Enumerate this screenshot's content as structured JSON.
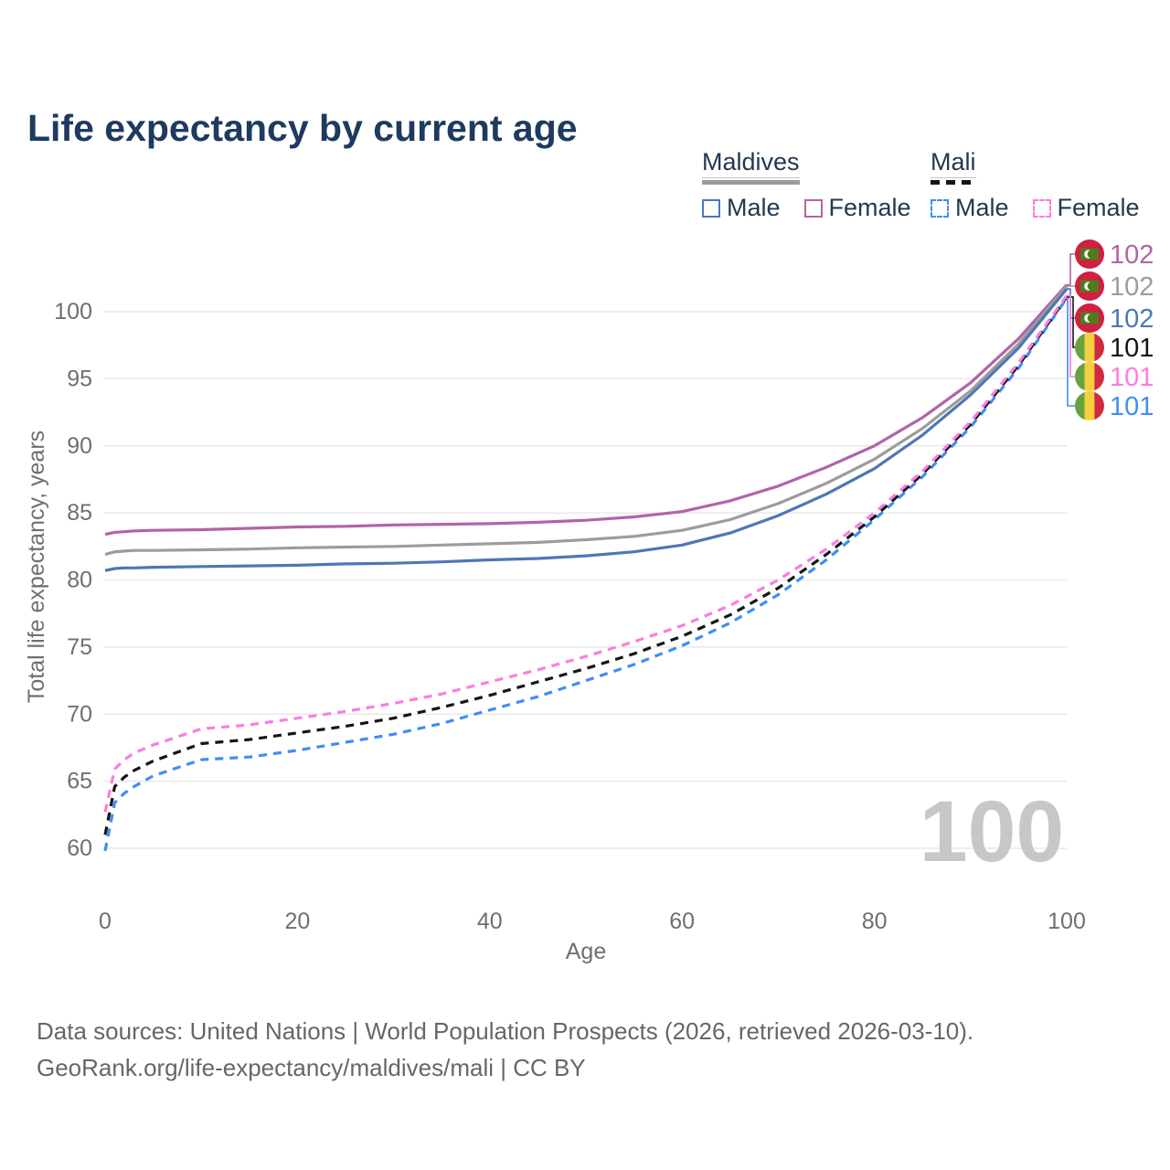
{
  "page": {
    "title": "Life expectancy by current age"
  },
  "legend": {
    "groups": [
      {
        "country": "Maldives",
        "line_style": "solid",
        "line_color": "#9c9c9c",
        "items": [
          {
            "label": "Male",
            "color": "#4d77b5",
            "dashed": false
          },
          {
            "label": "Female",
            "color": "#b164a8",
            "dashed": false
          }
        ]
      },
      {
        "country": "Mali",
        "line_style": "dashed",
        "line_color": "#151515",
        "items": [
          {
            "label": "Male",
            "color": "#3f8ef2",
            "dashed": true
          },
          {
            "label": "Female",
            "color": "#fd7ce1",
            "dashed": true
          }
        ]
      }
    ]
  },
  "chart_data": {
    "type": "line",
    "title": "Life expectancy by current age",
    "xlabel": "Age",
    "ylabel": "Total life expectancy, years",
    "xlim": [
      0,
      100
    ],
    "ylim": [
      59,
      103
    ],
    "xticks": [
      0,
      20,
      40,
      60,
      80,
      100
    ],
    "yticks": [
      60,
      65,
      70,
      75,
      80,
      85,
      90,
      95,
      100
    ],
    "grid": "horizontal-only",
    "legend_position": "top-right",
    "watermark": "100",
    "x": [
      0,
      1,
      2,
      3,
      5,
      10,
      15,
      20,
      25,
      30,
      35,
      40,
      45,
      50,
      55,
      60,
      65,
      70,
      75,
      80,
      85,
      90,
      95,
      100
    ],
    "series": [
      {
        "name": "Maldives Female",
        "country": "Maldives",
        "sex": "Female",
        "color": "#b164a8",
        "dashed": false,
        "flag": "maldives",
        "end_label": "102",
        "end_row": 0,
        "values": [
          83.4,
          83.55,
          83.6,
          83.65,
          83.7,
          83.75,
          83.85,
          83.95,
          84.0,
          84.1,
          84.15,
          84.2,
          84.3,
          84.45,
          84.7,
          85.1,
          85.9,
          87.0,
          88.4,
          90.0,
          92.1,
          94.7,
          98.0,
          102.0
        ]
      },
      {
        "name": "Maldives Both sexes",
        "country": "Maldives",
        "sex": "Both",
        "color": "#9c9c9c",
        "dashed": false,
        "flag": "maldives",
        "end_label": "102",
        "end_row": 1,
        "values": [
          81.9,
          82.1,
          82.15,
          82.2,
          82.2,
          82.25,
          82.3,
          82.4,
          82.45,
          82.5,
          82.6,
          82.7,
          82.8,
          83.0,
          83.25,
          83.7,
          84.5,
          85.7,
          87.2,
          89.0,
          91.3,
          94.1,
          97.6,
          101.9
        ]
      },
      {
        "name": "Maldives Male",
        "country": "Maldives",
        "sex": "Male",
        "color": "#4d77b5",
        "dashed": false,
        "flag": "maldives",
        "end_label": "102",
        "end_row": 2,
        "values": [
          80.7,
          80.85,
          80.9,
          80.9,
          80.95,
          81.0,
          81.05,
          81.1,
          81.2,
          81.25,
          81.35,
          81.5,
          81.6,
          81.8,
          82.1,
          82.6,
          83.5,
          84.8,
          86.4,
          88.3,
          90.8,
          93.8,
          97.3,
          101.7
        ]
      },
      {
        "name": "Mali Male",
        "country": "Mali",
        "sex": "Male",
        "color": "#3f8ef2",
        "dashed": true,
        "flag": "mali",
        "end_label": "101",
        "end_row": 5,
        "values": [
          59.8,
          63.4,
          64.1,
          64.6,
          65.4,
          66.6,
          66.8,
          67.3,
          67.9,
          68.5,
          69.3,
          70.3,
          71.3,
          72.5,
          73.7,
          75.1,
          76.8,
          78.9,
          81.5,
          84.5,
          87.7,
          91.4,
          95.8,
          101.0
        ]
      },
      {
        "name": "Mali Both sexes",
        "country": "Mali",
        "sex": "Both",
        "color": "#151515",
        "dashed": true,
        "flag": "mali",
        "end_label": "101",
        "end_row": 3,
        "values": [
          61.0,
          64.6,
          65.3,
          65.8,
          66.5,
          67.8,
          68.1,
          68.6,
          69.1,
          69.7,
          70.5,
          71.4,
          72.4,
          73.4,
          74.5,
          75.8,
          77.4,
          79.4,
          81.9,
          84.7,
          87.9,
          91.6,
          96.0,
          101.1
        ]
      },
      {
        "name": "Mali Female",
        "country": "Mali",
        "sex": "Female",
        "color": "#fd7ce1",
        "dashed": true,
        "flag": "mali",
        "end_label": "101",
        "end_row": 4,
        "values": [
          62.7,
          65.9,
          66.6,
          67.1,
          67.7,
          68.9,
          69.2,
          69.7,
          70.2,
          70.8,
          71.5,
          72.4,
          73.3,
          74.3,
          75.4,
          76.6,
          78.1,
          80.0,
          82.3,
          85.0,
          88.1,
          91.8,
          96.2,
          101.2
        ]
      }
    ],
    "flag_colors": {
      "maldives": {
        "red": "#d0203f",
        "green": "#4e7d1f",
        "crescent": "#ffffff"
      },
      "mali": {
        "green": "#66a23d",
        "yellow": "#f6cf3e",
        "red": "#d02a40"
      }
    }
  },
  "style": {
    "title_color": "#1e3a5f",
    "axis_color": "#6f6f6f",
    "grid_color": "#e9e9e9",
    "watermark_color": "#c7c7c7",
    "footer_color": "#666666"
  },
  "footer": {
    "line1": "Data sources: United Nations | World Population Prospects (2026, retrieved 2026-03-10).",
    "line2": "GeoRank.org/life-expectancy/maldives/mali | CC BY"
  }
}
